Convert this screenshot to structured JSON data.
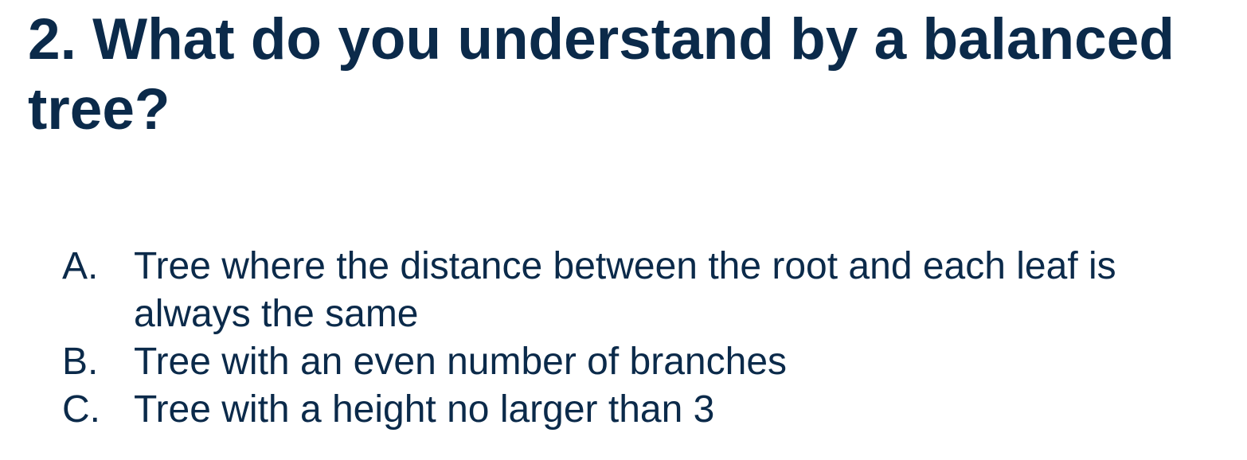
{
  "question": {
    "title": "2. What do you understand by a balanced tree?"
  },
  "options": [
    {
      "letter": "A.",
      "text": "Tree where the distance between the root and each leaf is always the same"
    },
    {
      "letter": "B.",
      "text": "Tree with an even number of branches"
    },
    {
      "letter": "C.",
      "text": "Tree with a height no larger than 3"
    }
  ],
  "colors": {
    "text": "#0b2a4a",
    "background": "#ffffff"
  }
}
